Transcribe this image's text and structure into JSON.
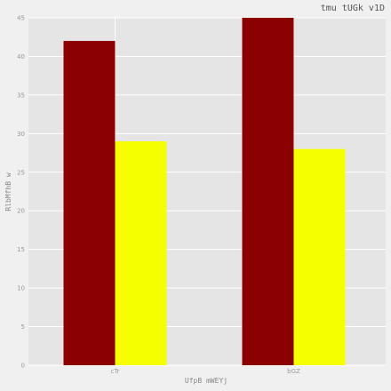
{
  "chart_data": {
    "type": "bar",
    "title": "tmu tUGk   v1D",
    "xlabel": "UfpB mWEYj",
    "ylabel": "RlbMfhB w",
    "categories": [
      "cTr",
      "bGZ"
    ],
    "series": [
      {
        "values": [
          42,
          45
        ],
        "color": "#8b0000"
      },
      {
        "values": [
          29,
          28
        ],
        "color": "#f5ff00"
      }
    ],
    "ylim": [
      0,
      45
    ],
    "yticks": [
      0,
      5,
      10,
      15,
      20,
      25,
      30,
      35,
      40,
      45
    ],
    "grid": true,
    "plot_background": "#e5e5e5",
    "grid_color": "#ffffff"
  }
}
